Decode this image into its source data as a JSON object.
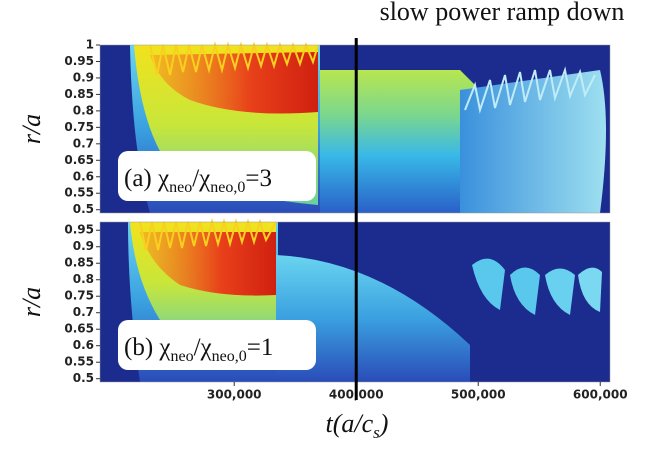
{
  "annotation": {
    "text": "slow power ramp down",
    "x": 400000
  },
  "chart_data": [
    {
      "type": "heatmap",
      "panel_label": {
        "prefix": "(a) χ",
        "sub1": "neo",
        "mid": "/χ",
        "sub2": "neo,0",
        "suffix": "=3"
      },
      "ylabel": "r/a",
      "xlim": [
        190000,
        608000
      ],
      "ylim": [
        0.49,
        1.0
      ],
      "yticks": [
        0.5,
        0.55,
        0.6,
        0.65,
        0.7,
        0.75,
        0.8,
        0.85,
        0.9,
        0.95,
        1
      ]
    },
    {
      "type": "heatmap",
      "panel_label": {
        "prefix": "(b) χ",
        "sub1": "neo",
        "mid": "/χ",
        "sub2": "neo,0",
        "suffix": "=1"
      },
      "ylabel": "r/a",
      "xlabel": {
        "main": "t(a/c",
        "sub": "s",
        "end": ")"
      },
      "xlim": [
        190000,
        608000
      ],
      "ylim": [
        0.49,
        0.975
      ],
      "yticks": [
        0.5,
        0.55,
        0.6,
        0.65,
        0.7,
        0.75,
        0.8,
        0.85,
        0.9,
        0.95
      ],
      "xticks": [
        {
          "value": 300000,
          "label": "300,000"
        },
        {
          "value": 400000,
          "label": "400,000"
        },
        {
          "value": 500000,
          "label": "500,000"
        },
        {
          "value": 600000,
          "label": "600,000"
        }
      ]
    }
  ]
}
